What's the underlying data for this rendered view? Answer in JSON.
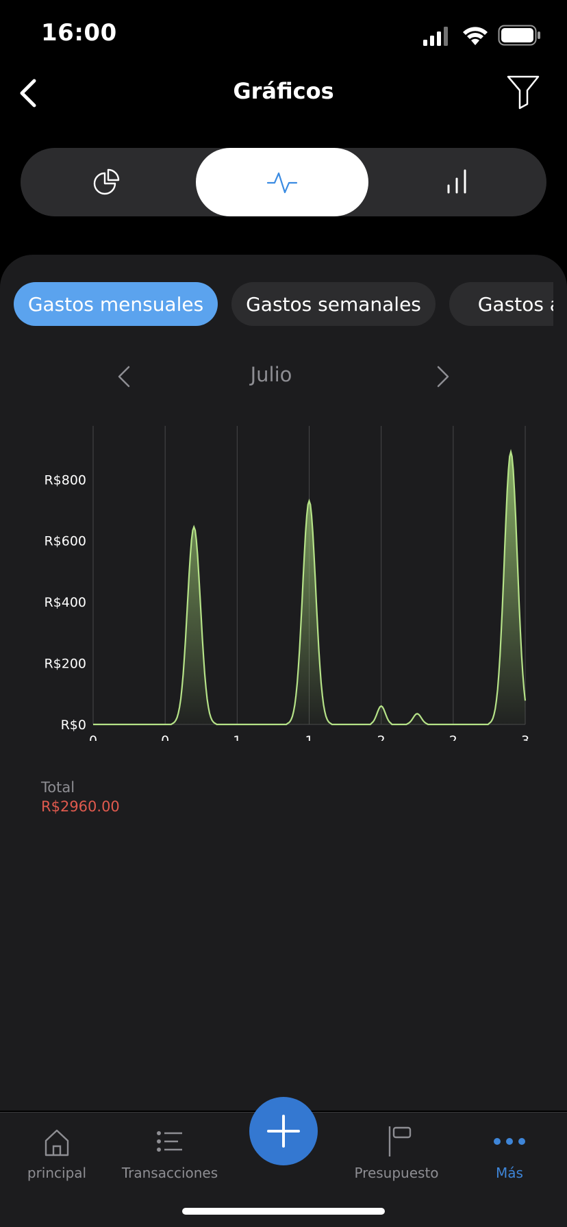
{
  "status_bar": {
    "time": "16:00",
    "icons": [
      "signal-icon",
      "wifi-icon",
      "battery-icon"
    ]
  },
  "header": {
    "title": "Gráficos",
    "back_icon": "chevron-left-icon",
    "filter_icon": "filter-icon"
  },
  "segmented_control": {
    "options": [
      {
        "icon": "pie-chart-icon",
        "active": false
      },
      {
        "icon": "line-chart-icon",
        "active": true
      },
      {
        "icon": "bar-chart-icon",
        "active": false
      }
    ]
  },
  "chips": [
    {
      "label": "Gastos mensuales",
      "active": true
    },
    {
      "label": "Gastos semanales",
      "active": false
    },
    {
      "label": "Gastos anuales",
      "active": false
    }
  ],
  "month_nav": {
    "label": "Julio",
    "prev_icon": "chevron-left-icon",
    "next_icon": "chevron-right-icon"
  },
  "chart_data": {
    "type": "area",
    "title": "",
    "xlabel": "",
    "ylabel": "",
    "x_tick_labels": [
      "0",
      "0",
      "1",
      "1",
      "2",
      "2",
      "3"
    ],
    "y_tick_labels": [
      "R$0",
      "R$200",
      "R$400",
      "R$600",
      "R$800"
    ],
    "y_ticks": [
      0,
      200,
      400,
      600,
      800
    ],
    "xlim": [
      0,
      3
    ],
    "ylim": [
      0,
      975
    ],
    "grid": "vertical",
    "series": [
      {
        "points": [
          {
            "x": 0.7,
            "y": 645
          },
          {
            "x": 1.5,
            "y": 730
          },
          {
            "x": 2.0,
            "y": 60
          },
          {
            "x": 2.25,
            "y": 35
          },
          {
            "x": 2.9,
            "y": 890
          }
        ]
      }
    ]
  },
  "colors": {
    "line": "#b6e388",
    "fill_top": "#8fb86a",
    "accent_blue": "#5ba3ee",
    "total_red": "#e05a4e"
  },
  "total": {
    "label": "Total",
    "value": "R$2960.00"
  },
  "tabbar": {
    "items": [
      {
        "label": "principal",
        "icon": "home-icon",
        "active": false
      },
      {
        "label": "Transacciones",
        "icon": "list-icon",
        "active": false
      },
      {
        "label": "Presupuesto",
        "icon": "flag-icon",
        "active": false
      },
      {
        "label": "Más",
        "icon": "more-icon",
        "active": true
      }
    ],
    "fab_icon": "plus-icon"
  }
}
